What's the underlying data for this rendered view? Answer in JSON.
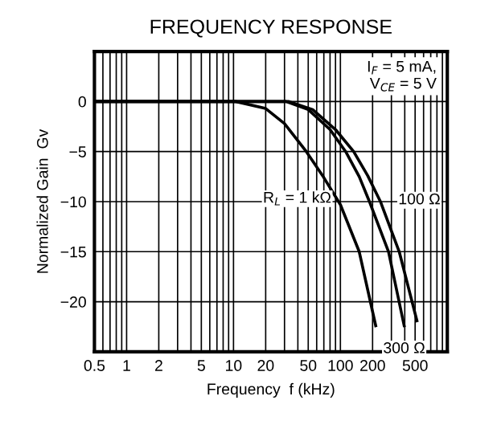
{
  "chart_data": {
    "type": "line",
    "title": "FREQUENCY RESPONSE",
    "xlabel": "Frequency  f (kHz)",
    "ylabel": "Normalized Gain  Gv",
    "log": "x",
    "xlim": [
      0.5,
      1000
    ],
    "ylim": [
      -25,
      5
    ],
    "xticks": [
      0.5,
      1,
      2,
      5,
      10,
      20,
      50,
      100,
      200,
      500
    ],
    "yticks": [
      0,
      -5,
      -10,
      -15,
      -20
    ],
    "grid": true,
    "marker": "none",
    "line_style": "solid",
    "annotations": [
      "I$_{F}$ = 5 mA,\nV$_{CE}$ = 5 V"
    ],
    "series": [
      {
        "name": "R$_{L}$ = 1 kΩ",
        "color": "#000000",
        "x": [
          0.5,
          10.5,
          20,
          30,
          48,
          70,
          100,
          150,
          214
        ],
        "values": [
          0,
          0,
          -0.7,
          -2.2,
          -5,
          -7.6,
          -10.3,
          -15,
          -22.4
        ]
      },
      {
        "name": "300 Ω",
        "color": "#000000",
        "x": [
          0.5,
          31,
          50,
          80,
          112,
          150,
          187,
          282,
          395
        ],
        "values": [
          0,
          0,
          -0.8,
          -2.8,
          -5,
          -7.5,
          -10,
          -15,
          -22.4
        ]
      },
      {
        "name": "100 Ω",
        "color": "#000000",
        "x": [
          0.5,
          33,
          55,
          90,
          133,
          180,
          237,
          355,
          520
        ],
        "values": [
          0,
          0,
          -0.8,
          -2.8,
          -5,
          -7.4,
          -10,
          -15,
          -21.9
        ]
      }
    ]
  }
}
